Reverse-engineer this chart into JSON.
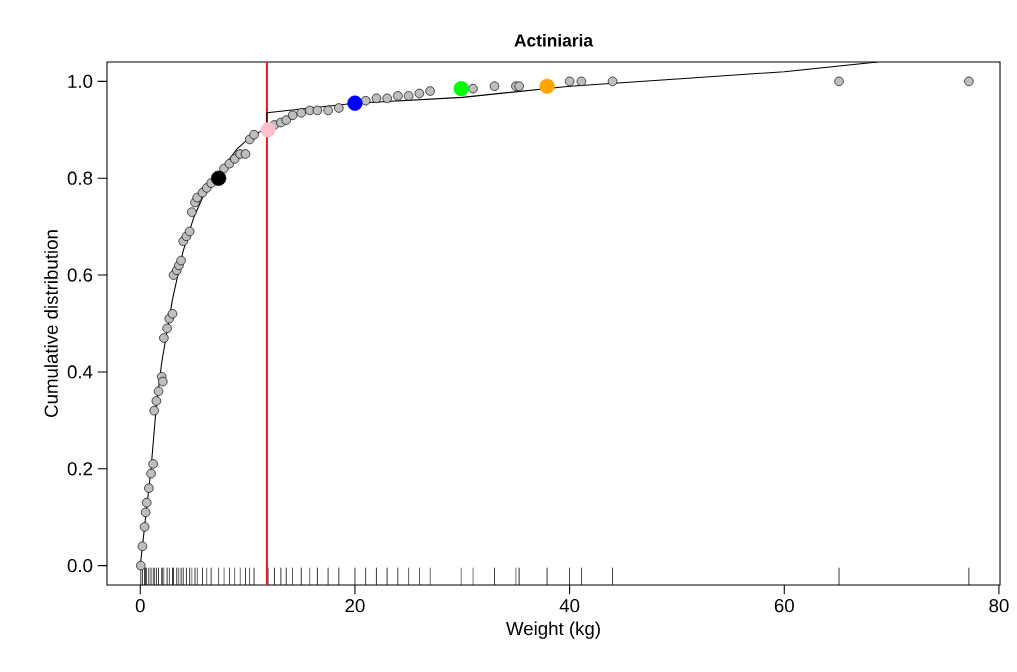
{
  "chart_data": {
    "type": "scatter",
    "title": "Actiniaria",
    "xlabel": "Weight (kg)",
    "ylabel": "Cumulative distribution",
    "xlim": [
      -3.1,
      80.1
    ],
    "ylim": [
      -0.04,
      1.04
    ],
    "xticks": [
      0,
      20,
      40,
      60,
      80
    ],
    "yticks": [
      {
        "value": 0,
        "label": "0.0"
      },
      {
        "value": 0.2,
        "label": "0.2"
      },
      {
        "value": 0.4,
        "label": "0.4"
      },
      {
        "value": 0.6,
        "label": "0.6"
      },
      {
        "value": 0.8,
        "label": "0.8"
      },
      {
        "value": 1,
        "label": "1.0"
      }
    ],
    "marker": "circle",
    "ref_lines": [
      {
        "axis": "x",
        "value": 11.8,
        "color": "#e41a1c"
      }
    ],
    "series": [
      {
        "color": "#bebebe",
        "x": [
          0.05,
          0.2,
          0.4,
          0.5,
          0.6,
          0.8,
          1.0,
          1.2,
          1.3,
          1.5,
          1.7,
          2.0,
          2.1,
          2.2,
          2.5,
          2.7,
          3.0,
          3.1,
          3.4,
          3.6,
          3.8,
          4.0,
          4.3,
          4.6,
          4.8,
          5.1,
          5.3,
          5.8,
          6.2,
          6.6,
          7.8,
          8.3,
          8.8,
          9.3,
          9.8,
          10.2,
          10.6,
          12.5,
          13.1,
          13.6,
          14.2,
          15.0,
          15.8,
          16.5,
          17.5,
          18.5,
          21.0,
          22.0,
          23.0,
          24.0,
          25.0,
          26.0,
          27.0,
          31.0,
          33.0,
          35.0,
          35.3,
          40.0,
          41.1,
          44.0,
          65.1,
          77.2
        ],
        "values": [
          0.0,
          0.04,
          0.08,
          0.11,
          0.13,
          0.16,
          0.19,
          0.21,
          0.32,
          0.34,
          0.36,
          0.39,
          0.38,
          0.47,
          0.49,
          0.51,
          0.52,
          0.6,
          0.61,
          0.62,
          0.63,
          0.67,
          0.68,
          0.69,
          0.73,
          0.75,
          0.76,
          0.77,
          0.78,
          0.79,
          0.82,
          0.83,
          0.84,
          0.85,
          0.85,
          0.88,
          0.89,
          0.91,
          0.915,
          0.92,
          0.93,
          0.935,
          0.94,
          0.94,
          0.94,
          0.945,
          0.96,
          0.965,
          0.965,
          0.97,
          0.97,
          0.975,
          0.98,
          0.985,
          0.99,
          0.99,
          0.99,
          1.0,
          1.0,
          1.0,
          1.0,
          1.0
        ]
      },
      {
        "type": "line",
        "marker": "none",
        "color": "#000000",
        "x": [
          0,
          0.5,
          1,
          1.5,
          2,
          3,
          4,
          5,
          6,
          7,
          8,
          9,
          10,
          11.8,
          11.8,
          20,
          30,
          40,
          50,
          60,
          68.7
        ],
        "values": [
          0,
          0.1,
          0.2,
          0.33,
          0.42,
          0.55,
          0.65,
          0.72,
          0.77,
          0.8,
          0.83,
          0.86,
          0.88,
          0.905,
          0.935,
          0.955,
          0.967,
          0.99,
          1.005,
          1.02,
          1.04
        ]
      },
      {
        "color": "#000000",
        "x": [
          7.3
        ],
        "values": [
          0.8
        ]
      },
      {
        "color": "#ffc0cb",
        "x": [
          11.9
        ],
        "values": [
          0.9
        ]
      },
      {
        "color": "#0000ff",
        "x": [
          20.0
        ],
        "values": [
          0.955
        ]
      },
      {
        "color": "#00ff00",
        "x": [
          29.9
        ],
        "values": [
          0.985
        ]
      },
      {
        "color": "#ffa500",
        "x": [
          37.9
        ],
        "values": [
          0.99
        ]
      }
    ]
  }
}
